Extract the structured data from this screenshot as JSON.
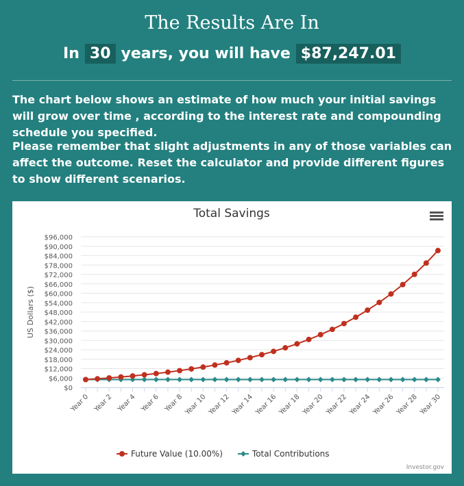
{
  "header": {
    "title": "The Results Are In",
    "prefix": "In",
    "years": "30",
    "middle": "years, you will have",
    "amount": "$87,247.01"
  },
  "paragraphs": [
    "The chart below shows an estimate of how much your initial savings will grow over time , according to the interest rate and compounding schedule you specified.",
    "Please remember that slight adjustments in any of those variables can affect the outcome. Reset the calculator and provide different figures to show different scenarios."
  ],
  "chart_data": {
    "type": "line",
    "title": "Total Savings",
    "y_label": "US Dollars ($)",
    "credit": "Investor.gov",
    "categories": [
      "Year 0",
      null,
      "Year 2",
      null,
      "Year 4",
      null,
      "Year 6",
      null,
      "Year 8",
      null,
      "Year 10",
      null,
      "Year 12",
      null,
      "Year 14",
      null,
      "Year 16",
      null,
      "Year 18",
      null,
      "Year 20",
      null,
      "Year 22",
      null,
      "Year 24",
      null,
      "Year 26",
      null,
      "Year 28",
      null,
      "Year 30"
    ],
    "series": [
      {
        "name": "Future Value (10.00%)",
        "color": "#c0301f",
        "marker": "circle",
        "values": [
          5000,
          5500,
          6050,
          6655,
          7320.5,
          8052.55,
          8857.81,
          9743.59,
          10717.94,
          11789.74,
          12968.71,
          14265.58,
          15692.14,
          17261.36,
          18987.49,
          20886.24,
          22974.86,
          25272.35,
          27799.59,
          30579.55,
          33637.5,
          37001.25,
          40701.37,
          44771.51,
          49248.66,
          54173.53,
          59590.88,
          65549.97,
          72104.97,
          79315.47,
          87247.01
        ]
      },
      {
        "name": "Total Contributions",
        "color": "#2a8a8a",
        "marker": "diamond",
        "values": [
          5000,
          5000,
          5000,
          5000,
          5000,
          5000,
          5000,
          5000,
          5000,
          5000,
          5000,
          5000,
          5000,
          5000,
          5000,
          5000,
          5000,
          5000,
          5000,
          5000,
          5000,
          5000,
          5000,
          5000,
          5000,
          5000,
          5000,
          5000,
          5000,
          5000,
          5000
        ]
      }
    ],
    "ylim": [
      0,
      96000
    ],
    "yticks": [
      {
        "value": 0,
        "label": "$0"
      },
      {
        "value": 6000,
        "label": "$6,000"
      },
      {
        "value": 12000,
        "label": "$12,000"
      },
      {
        "value": 18000,
        "label": "$18,000"
      },
      {
        "value": 24000,
        "label": "$24,000"
      },
      {
        "value": 30000,
        "label": "$30,000"
      },
      {
        "value": 36000,
        "label": "$36,000"
      },
      {
        "value": 42000,
        "label": "$42,000"
      },
      {
        "value": 48000,
        "label": "$48,000"
      },
      {
        "value": 54000,
        "label": "$54,000"
      },
      {
        "value": 60000,
        "label": "$60,000"
      },
      {
        "value": 66000,
        "label": "$66,000"
      },
      {
        "value": 72000,
        "label": "$72,000"
      },
      {
        "value": 78000,
        "label": "$78,000"
      },
      {
        "value": 84000,
        "label": "$84,000"
      },
      {
        "value": 90000,
        "label": "$90,000"
      },
      {
        "value": 96000,
        "label": "$96,000"
      }
    ],
    "grid": true,
    "legend": "bottom"
  }
}
